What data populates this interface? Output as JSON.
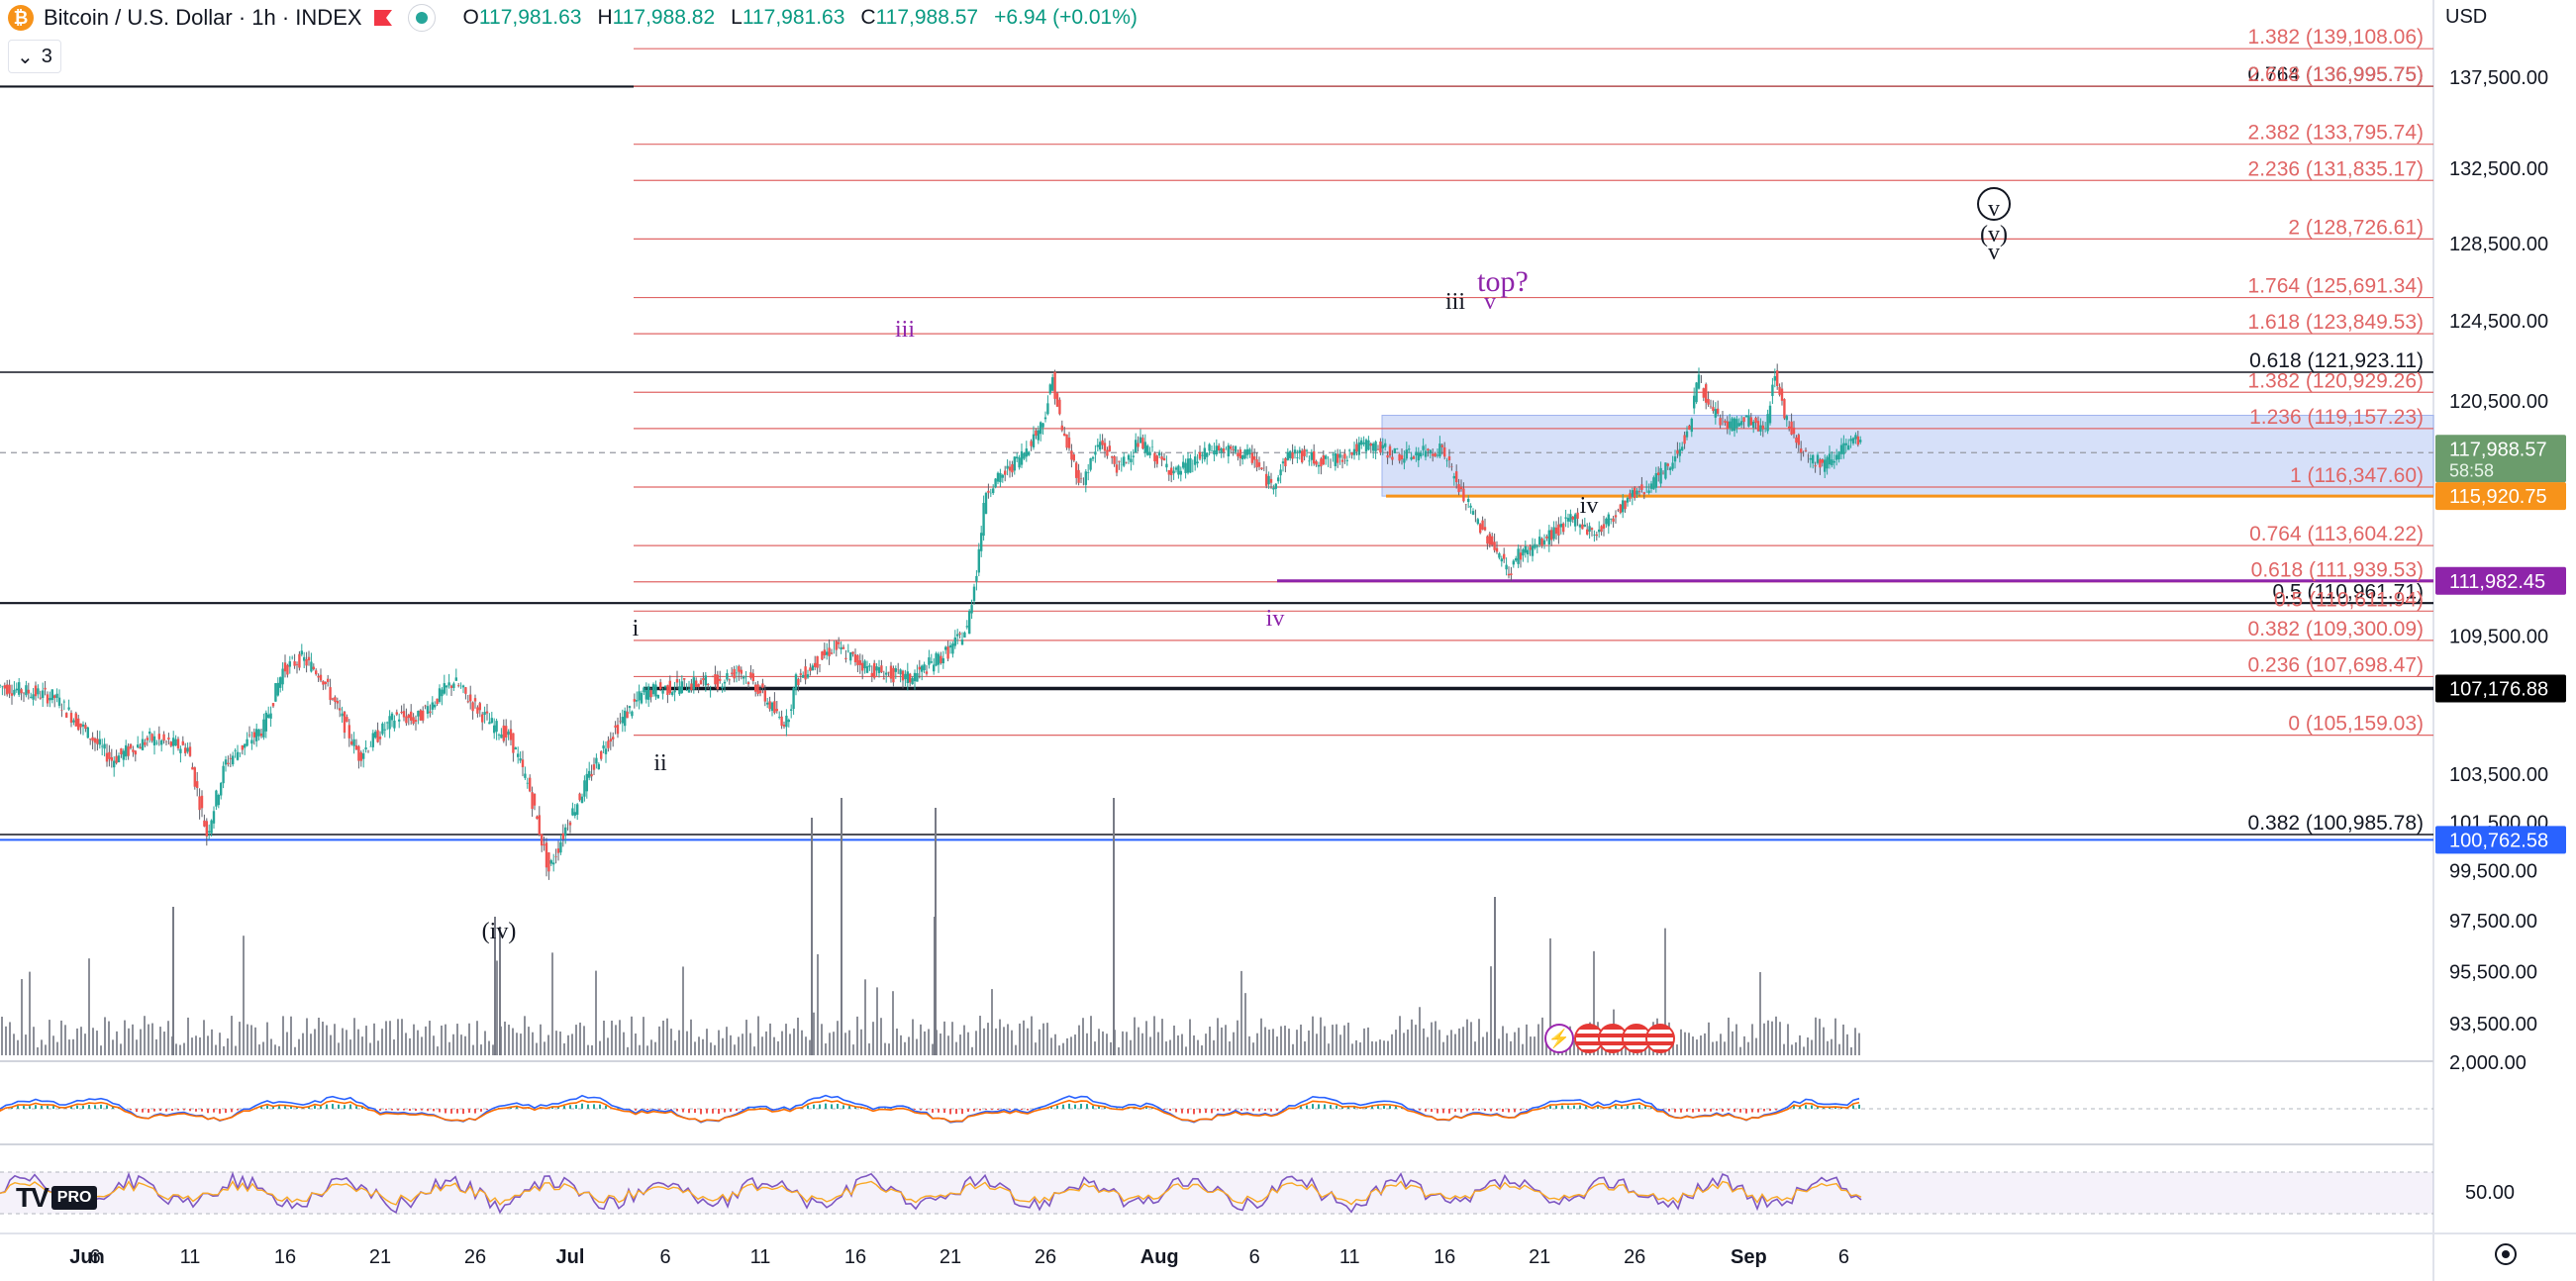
{
  "header": {
    "symbol": "Bitcoin / U.S. Dollar · 1h · INDEX",
    "open_label": "O",
    "open": "117,981.63",
    "high_label": "H",
    "high": "117,988.82",
    "low_label": "L",
    "low": "117,981.63",
    "close_label": "C",
    "close": "117,988.57",
    "change": "+6.94 (+0.01%)",
    "indicator_count": "3",
    "currency": "USD",
    "logo_pro": "PRO",
    "logo_text": "TV"
  },
  "colors": {
    "up": "#089981",
    "down": "#f23645",
    "fib": "#e06666",
    "purple": "#8e24aa",
    "orange": "#f7931a",
    "blue": "#2962ff",
    "zone": "#c5d3f7"
  },
  "chart_data": {
    "type": "candlestick",
    "timeframe": "1h",
    "last_price": 117988.57,
    "y_axis_ticks": [
      "137,500.00",
      "132,500.00",
      "128,500.00",
      "124,500.00",
      "120,500.00",
      "109,500.00",
      "103,500.00",
      "101,500.00",
      "99,500.00",
      "97,500.00",
      "95,500.00",
      "93,500.00"
    ],
    "x_axis_ticks": [
      "Jun",
      "6",
      "11",
      "16",
      "21",
      "26",
      "Jul",
      "6",
      "11",
      "16",
      "21",
      "26",
      "Aug",
      "6",
      "11",
      "16",
      "21",
      "26",
      "Sep",
      "6"
    ],
    "osc1_tick": "2,000.00",
    "osc2_tick": "50.00",
    "price_path": [
      [
        0,
        107300
      ],
      [
        3,
        106800
      ],
      [
        5,
        105000
      ],
      [
        6,
        104100
      ],
      [
        8,
        105000
      ],
      [
        10,
        104600
      ],
      [
        11,
        101000
      ],
      [
        12,
        104000
      ],
      [
        14,
        105500
      ],
      [
        15,
        108000
      ],
      [
        16,
        108500
      ],
      [
        17,
        107800
      ],
      [
        19,
        104300
      ],
      [
        21,
        106000
      ],
      [
        22,
        105800
      ],
      [
        24,
        107500
      ],
      [
        25,
        106500
      ],
      [
        26,
        105600
      ],
      [
        27,
        105000
      ],
      [
        28,
        102800
      ],
      [
        29,
        99500
      ],
      [
        30,
        101500
      ],
      [
        31,
        103200
      ],
      [
        32,
        104800
      ],
      [
        33,
        106000
      ],
      [
        34,
        107000
      ],
      [
        36,
        107300
      ],
      [
        38,
        107500
      ],
      [
        39,
        108000
      ],
      [
        40,
        107200
      ],
      [
        41,
        106000
      ],
      [
        41.5,
        105700
      ],
      [
        42,
        107500
      ],
      [
        43,
        108300
      ],
      [
        44,
        109000
      ],
      [
        45,
        108500
      ],
      [
        46,
        108000
      ],
      [
        47,
        107800
      ],
      [
        48,
        107600
      ],
      [
        49,
        108200
      ],
      [
        50,
        108800
      ],
      [
        51,
        109800
      ],
      [
        51.5,
        112500
      ],
      [
        52,
        116200
      ],
      [
        53,
        117000
      ],
      [
        54,
        118000
      ],
      [
        55,
        119500
      ],
      [
        55.5,
        121600
      ],
      [
        56,
        119000
      ],
      [
        57,
        116500
      ],
      [
        58,
        118500
      ],
      [
        59,
        117200
      ],
      [
        60,
        118500
      ],
      [
        62,
        117000
      ],
      [
        64,
        118200
      ],
      [
        66,
        117800
      ],
      [
        67,
        116400
      ],
      [
        68,
        118000
      ],
      [
        70,
        117500
      ],
      [
        72,
        118400
      ],
      [
        74,
        117800
      ],
      [
        76,
        118200
      ],
      [
        77,
        116000
      ],
      [
        78,
        114500
      ],
      [
        79,
        113200
      ],
      [
        79.5,
        112300
      ],
      [
        80,
        113200
      ],
      [
        81,
        113600
      ],
      [
        82,
        114300
      ],
      [
        83,
        114900
      ],
      [
        84,
        114100
      ],
      [
        85,
        115000
      ],
      [
        86,
        116000
      ],
      [
        87,
        116500
      ],
      [
        88,
        117400
      ],
      [
        89,
        119200
      ],
      [
        89.5,
        121900
      ],
      [
        90,
        120100
      ],
      [
        91,
        119300
      ],
      [
        92,
        119600
      ],
      [
        93,
        119000
      ],
      [
        93.5,
        122000
      ],
      [
        94,
        119800
      ],
      [
        95,
        118000
      ],
      [
        96,
        117400
      ],
      [
        97,
        118200
      ],
      [
        98,
        118600
      ]
    ],
    "fib_levels": [
      {
        "label": "1.382 (139,108.06)",
        "price": 139108.06,
        "color": "red"
      },
      {
        "label": "0.764 (136,995.75)",
        "price": 136995.75,
        "color": "black"
      },
      {
        "label": "2.618 (136,995.75)",
        "price": 136995.75,
        "color": "red"
      },
      {
        "label": "2.382 (133,795.74)",
        "price": 133795.74,
        "color": "red"
      },
      {
        "label": "2.236 (131,835.17)",
        "price": 131835.17,
        "color": "red"
      },
      {
        "label": "2 (128,726.61)",
        "price": 128726.61,
        "color": "red"
      },
      {
        "label": "1.764 (125,691.34)",
        "price": 125691.34,
        "color": "red"
      },
      {
        "label": "1.618 (123,849.53)",
        "price": 123849.53,
        "color": "red"
      },
      {
        "label": "0.618 (121,923.11)",
        "price": 121923.11,
        "color": "black"
      },
      {
        "label": "1.382 (120,929.26)",
        "price": 120929.26,
        "color": "red"
      },
      {
        "label": "1.236 (119,157.23)",
        "price": 119157.23,
        "color": "red"
      },
      {
        "label": "1 (116,347.60)",
        "price": 116347.6,
        "color": "red"
      },
      {
        "label": "0.764 (113,604.22)",
        "price": 113604.22,
        "color": "red"
      },
      {
        "label": "0.618 (111,939.53)",
        "price": 111939.53,
        "color": "red"
      },
      {
        "label": "0.5 (110,961.71)",
        "price": 110961.71,
        "color": "black"
      },
      {
        "label": "0.5 (110,611.94)",
        "price": 110611.94,
        "color": "red"
      },
      {
        "label": "0.382 (109,300.09)",
        "price": 109300.09,
        "color": "red"
      },
      {
        "label": "0.236 (107,698.47)",
        "price": 107698.47,
        "color": "red"
      },
      {
        "label": "0 (105,159.03)",
        "price": 105159.03,
        "color": "red"
      },
      {
        "label": "0.382 (100,985.78)",
        "price": 100985.78,
        "color": "black"
      }
    ],
    "price_badges": [
      {
        "label": "117,988.57",
        "sub": "58:58",
        "color": "green"
      },
      {
        "label": "115,920.75",
        "color": "orange"
      },
      {
        "label": "111,982.45",
        "color": "purple"
      },
      {
        "label": "107,176.88",
        "color": "black"
      },
      {
        "label": "100,762.58",
        "color": "blue"
      }
    ],
    "wave_labels": [
      {
        "text": "(iv)",
        "color": "black"
      },
      {
        "text": "i",
        "color": "black"
      },
      {
        "text": "ii",
        "color": "black"
      },
      {
        "text": "iii",
        "color": "purple"
      },
      {
        "text": "iv",
        "color": "purple"
      },
      {
        "text": "iii",
        "color": "black"
      },
      {
        "text": "v",
        "color": "purple"
      },
      {
        "text": "top?",
        "color": "purple"
      },
      {
        "text": "iv",
        "color": "black"
      },
      {
        "text": "v",
        "color": "black"
      },
      {
        "text": "(v)",
        "color": "black"
      },
      {
        "text": "v",
        "color": "black"
      }
    ]
  }
}
